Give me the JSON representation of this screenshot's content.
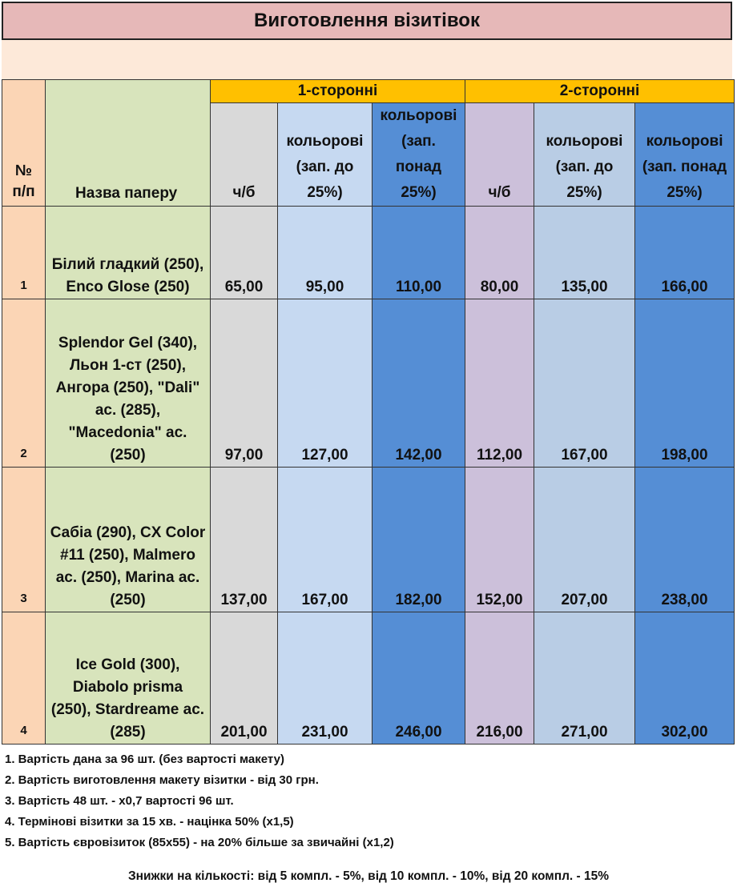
{
  "title": "Виготовлення візитівок",
  "groups": {
    "one_sided": "1-сторонні",
    "two_sided": "2-сторонні"
  },
  "headers": {
    "num": [
      "№",
      "п/п"
    ],
    "name": "Назва паперу",
    "bw": "ч/б",
    "color_low": [
      "кольорові",
      "(зап. до",
      "25%)"
    ],
    "color_high_1": [
      "кольорові",
      "(зап.",
      "понад",
      "25%)"
    ],
    "bw2": "ч/б",
    "color_low2": [
      "кольорові",
      "(зап. до",
      "25%)"
    ],
    "color_high_2": [
      "кольорові",
      "(зап. понад",
      "25%)"
    ]
  },
  "rows": [
    {
      "num": "1",
      "name": [
        "Білий гладкий (250),",
        "Enco Glose (250)"
      ],
      "prices": [
        "65,00",
        "95,00",
        "110,00",
        "80,00",
        "135,00",
        "166,00"
      ]
    },
    {
      "num": "2",
      "name": [
        "Splendor Gel (340),",
        "Льон 1-ст (250),",
        "Ангора (250), \"Dali\"",
        "ас. (285),",
        "\"Macedonia\" ас.",
        "(250)"
      ],
      "prices": [
        "97,00",
        "127,00",
        "142,00",
        "112,00",
        "167,00",
        "198,00"
      ]
    },
    {
      "num": "3",
      "name": [
        "Сабіа (290),  CX Color",
        "#11 (250), Malmero",
        "ас. (250), Marina ас.",
        "(250)"
      ],
      "prices": [
        "137,00",
        "167,00",
        "182,00",
        "152,00",
        "207,00",
        "238,00"
      ]
    },
    {
      "num": "4",
      "name": [
        "Ice Gold (300),",
        "Diabolo prisma",
        "(250), Stardreame ас.",
        "(285)"
      ],
      "prices": [
        "201,00",
        "231,00",
        "246,00",
        "216,00",
        "271,00",
        "302,00"
      ]
    }
  ],
  "notes": [
    "1. Вартість дана за 96 шт.  (без вартості макету)",
    "2. Вартість виготовлення макету візитки - від 30 грн.",
    "3. Вартість 48 шт. - х0,7 вартості 96 шт.",
    "4. Термінові візитки за 15 хв. - націнка 50% (х1,5)",
    "5. Вартість євровізиток (85х55) - на 20% більше за звичайні (х1,2)"
  ],
  "discounts": "Знижки на кількості: від 5 компл. - 5%, від 10 компл. - 10%, від 20 компл. - 15%",
  "colors": {
    "title_bg": "#e6b8b8",
    "peach": "#fde9d9",
    "group_header": "#ffc000",
    "num_col": "#fbd5b5",
    "name_col": "#d8e4bc",
    "bw1": "#d9d9d9",
    "color1": "#c6d9f1",
    "color_high": "#558ed5",
    "bw2": "#ccc0da",
    "color2": "#b9cde5"
  }
}
